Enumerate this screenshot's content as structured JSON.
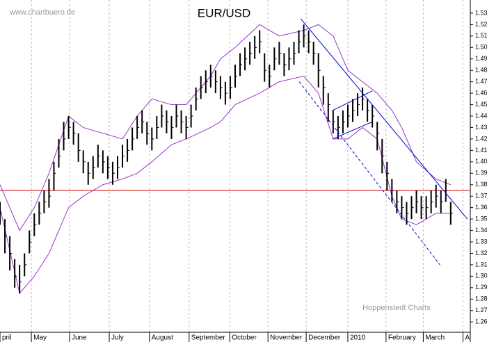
{
  "chart_data": {
    "type": "ohlc",
    "title": "EUR/USD",
    "watermark": "www.chartbuero.de",
    "source": "Hoppenstedt Charts",
    "x": [
      0,
      1,
      2,
      3,
      4,
      5,
      6,
      7,
      8,
      9,
      10,
      11,
      12,
      13,
      14,
      15,
      16,
      17,
      18,
      19,
      20,
      21,
      22,
      23,
      24,
      25,
      26,
      27,
      28,
      29,
      30,
      31,
      32,
      33,
      34,
      35,
      36,
      37,
      38,
      39,
      40,
      41,
      42,
      43,
      44,
      45,
      46,
      47,
      48,
      49,
      50,
      51,
      52,
      53,
      54,
      55,
      56,
      57,
      58,
      59,
      60,
      61,
      62,
      63,
      64,
      65,
      66,
      67,
      68,
      69,
      70,
      71,
      72,
      73,
      74,
      75,
      76,
      77,
      78,
      79,
      80,
      81,
      82,
      83,
      84,
      85,
      86,
      87,
      88,
      89,
      90,
      91,
      92
    ],
    "high": [
      1.365,
      1.35,
      1.335,
      1.315,
      1.31,
      1.32,
      1.34,
      1.355,
      1.365,
      1.375,
      1.385,
      1.4,
      1.42,
      1.435,
      1.44,
      1.435,
      1.425,
      1.41,
      1.4,
      1.405,
      1.415,
      1.41,
      1.405,
      1.4,
      1.405,
      1.415,
      1.42,
      1.43,
      1.44,
      1.445,
      1.435,
      1.43,
      1.44,
      1.45,
      1.445,
      1.44,
      1.45,
      1.445,
      1.44,
      1.45,
      1.465,
      1.475,
      1.48,
      1.485,
      1.48,
      1.475,
      1.47,
      1.475,
      1.485,
      1.495,
      1.5,
      1.505,
      1.51,
      1.515,
      1.495,
      1.485,
      1.5,
      1.505,
      1.495,
      1.5,
      1.505,
      1.515,
      1.52,
      1.515,
      1.505,
      1.495,
      1.475,
      1.46,
      1.445,
      1.44,
      1.445,
      1.45,
      1.455,
      1.46,
      1.465,
      1.455,
      1.45,
      1.435,
      1.42,
      1.4,
      1.385,
      1.375,
      1.37,
      1.365,
      1.37,
      1.375,
      1.37,
      1.37,
      1.375,
      1.38,
      1.375,
      1.385,
      1.365
    ],
    "low": [
      1.345,
      1.32,
      1.305,
      1.29,
      1.285,
      1.3,
      1.32,
      1.335,
      1.345,
      1.355,
      1.36,
      1.375,
      1.395,
      1.41,
      1.42,
      1.415,
      1.4,
      1.39,
      1.38,
      1.385,
      1.395,
      1.39,
      1.385,
      1.38,
      1.385,
      1.395,
      1.4,
      1.41,
      1.42,
      1.425,
      1.415,
      1.41,
      1.42,
      1.43,
      1.425,
      1.42,
      1.43,
      1.425,
      1.42,
      1.43,
      1.445,
      1.455,
      1.46,
      1.465,
      1.46,
      1.455,
      1.45,
      1.455,
      1.465,
      1.475,
      1.48,
      1.485,
      1.49,
      1.495,
      1.47,
      1.465,
      1.48,
      1.485,
      1.475,
      1.48,
      1.485,
      1.495,
      1.5,
      1.495,
      1.485,
      1.465,
      1.45,
      1.435,
      1.425,
      1.42,
      1.425,
      1.43,
      1.435,
      1.44,
      1.445,
      1.435,
      1.43,
      1.41,
      1.39,
      1.375,
      1.365,
      1.355,
      1.35,
      1.345,
      1.35,
      1.355,
      1.35,
      1.35,
      1.355,
      1.36,
      1.355,
      1.365,
      1.345
    ],
    "close": [
      1.355,
      1.335,
      1.32,
      1.3,
      1.295,
      1.31,
      1.33,
      1.345,
      1.355,
      1.365,
      1.37,
      1.39,
      1.405,
      1.42,
      1.43,
      1.425,
      1.41,
      1.4,
      1.39,
      1.395,
      1.405,
      1.4,
      1.395,
      1.39,
      1.395,
      1.405,
      1.41,
      1.42,
      1.43,
      1.435,
      1.425,
      1.42,
      1.43,
      1.44,
      1.435,
      1.43,
      1.44,
      1.435,
      1.43,
      1.44,
      1.455,
      1.465,
      1.47,
      1.475,
      1.47,
      1.465,
      1.46,
      1.465,
      1.475,
      1.485,
      1.49,
      1.495,
      1.5,
      1.505,
      1.48,
      1.475,
      1.49,
      1.495,
      1.485,
      1.49,
      1.495,
      1.505,
      1.51,
      1.505,
      1.495,
      1.48,
      1.465,
      1.45,
      1.435,
      1.43,
      1.435,
      1.44,
      1.445,
      1.45,
      1.455,
      1.445,
      1.44,
      1.425,
      1.405,
      1.39,
      1.375,
      1.365,
      1.36,
      1.355,
      1.36,
      1.365,
      1.36,
      1.36,
      1.365,
      1.37,
      1.365,
      1.375,
      1.355
    ],
    "color": "#000000",
    "bands": {
      "color": "#9933cc",
      "x": [
        0,
        4,
        7,
        10,
        14,
        17,
        21,
        25,
        28,
        31,
        35,
        38,
        43,
        45,
        48,
        53,
        57,
        62,
        65,
        68,
        71,
        74,
        77,
        80,
        82,
        85,
        89,
        92
      ],
      "upper": [
        1.38,
        1.34,
        1.36,
        1.39,
        1.44,
        1.43,
        1.425,
        1.42,
        1.44,
        1.455,
        1.45,
        1.45,
        1.475,
        1.49,
        1.5,
        1.52,
        1.51,
        1.515,
        1.52,
        1.51,
        1.48,
        1.47,
        1.46,
        1.445,
        1.43,
        1.4,
        1.385,
        1.38
      ],
      "lower": [
        1.36,
        1.285,
        1.3,
        1.32,
        1.36,
        1.37,
        1.38,
        1.385,
        1.39,
        1.4,
        1.415,
        1.42,
        1.43,
        1.435,
        1.45,
        1.46,
        1.47,
        1.475,
        1.46,
        1.42,
        1.42,
        1.43,
        1.42,
        1.37,
        1.35,
        1.345,
        1.355,
        1.355
      ]
    },
    "trendlines": [
      {
        "x": [
          61.4,
          95.4
        ],
        "y": [
          1.525,
          1.35
        ],
        "color": "#0000cc",
        "dashed": false
      },
      {
        "x": [
          61.1,
          89.8
        ],
        "y": [
          1.47,
          1.31
        ],
        "color": "#0000cc",
        "dashed": true
      },
      {
        "x": [
          67.9,
          76
        ],
        "y": [
          1.42,
          1.435
        ],
        "color": "#0000cc",
        "dashed": false
      },
      {
        "x": [
          67.9,
          76
        ],
        "y": [
          1.445,
          1.462
        ],
        "color": "#0000cc",
        "dashed": false
      }
    ],
    "hline": {
      "value": 1.375,
      "color": "#cc0000"
    },
    "xlim": [
      0,
      96
    ],
    "xticks": [
      {
        "value": 0,
        "label": "pril"
      },
      {
        "value": 6.4,
        "label": "May"
      },
      {
        "value": 14.2,
        "label": "June"
      },
      {
        "value": 22.3,
        "label": "July"
      },
      {
        "value": 30.5,
        "label": "August"
      },
      {
        "value": 38.6,
        "label": "September"
      },
      {
        "value": 46.9,
        "label": "October"
      },
      {
        "value": 54.7,
        "label": "November"
      },
      {
        "value": 62.5,
        "label": "December"
      },
      {
        "value": 71,
        "label": "2010"
      },
      {
        "value": 78.8,
        "label": "February"
      },
      {
        "value": 86.4,
        "label": "March"
      },
      {
        "value": 94.5,
        "label": "A"
      }
    ],
    "ylim": [
      1.251,
      1.5415
    ],
    "yticks": [
      1.53,
      1.52,
      1.51,
      {
        "value": 1.5,
        "label": "1.50"
      },
      1.49,
      1.48,
      1.47,
      1.46,
      1.45,
      1.44,
      1.43,
      1.42,
      1.41,
      {
        "value": 1.4,
        "label": "1.40"
      },
      1.39,
      1.38,
      1.37,
      1.36,
      1.35,
      1.34,
      1.33,
      1.32,
      1.31,
      {
        "value": 1.3,
        "label": "1.30"
      },
      1.29,
      1.28,
      1.27,
      1.26
    ],
    "grid": true
  }
}
